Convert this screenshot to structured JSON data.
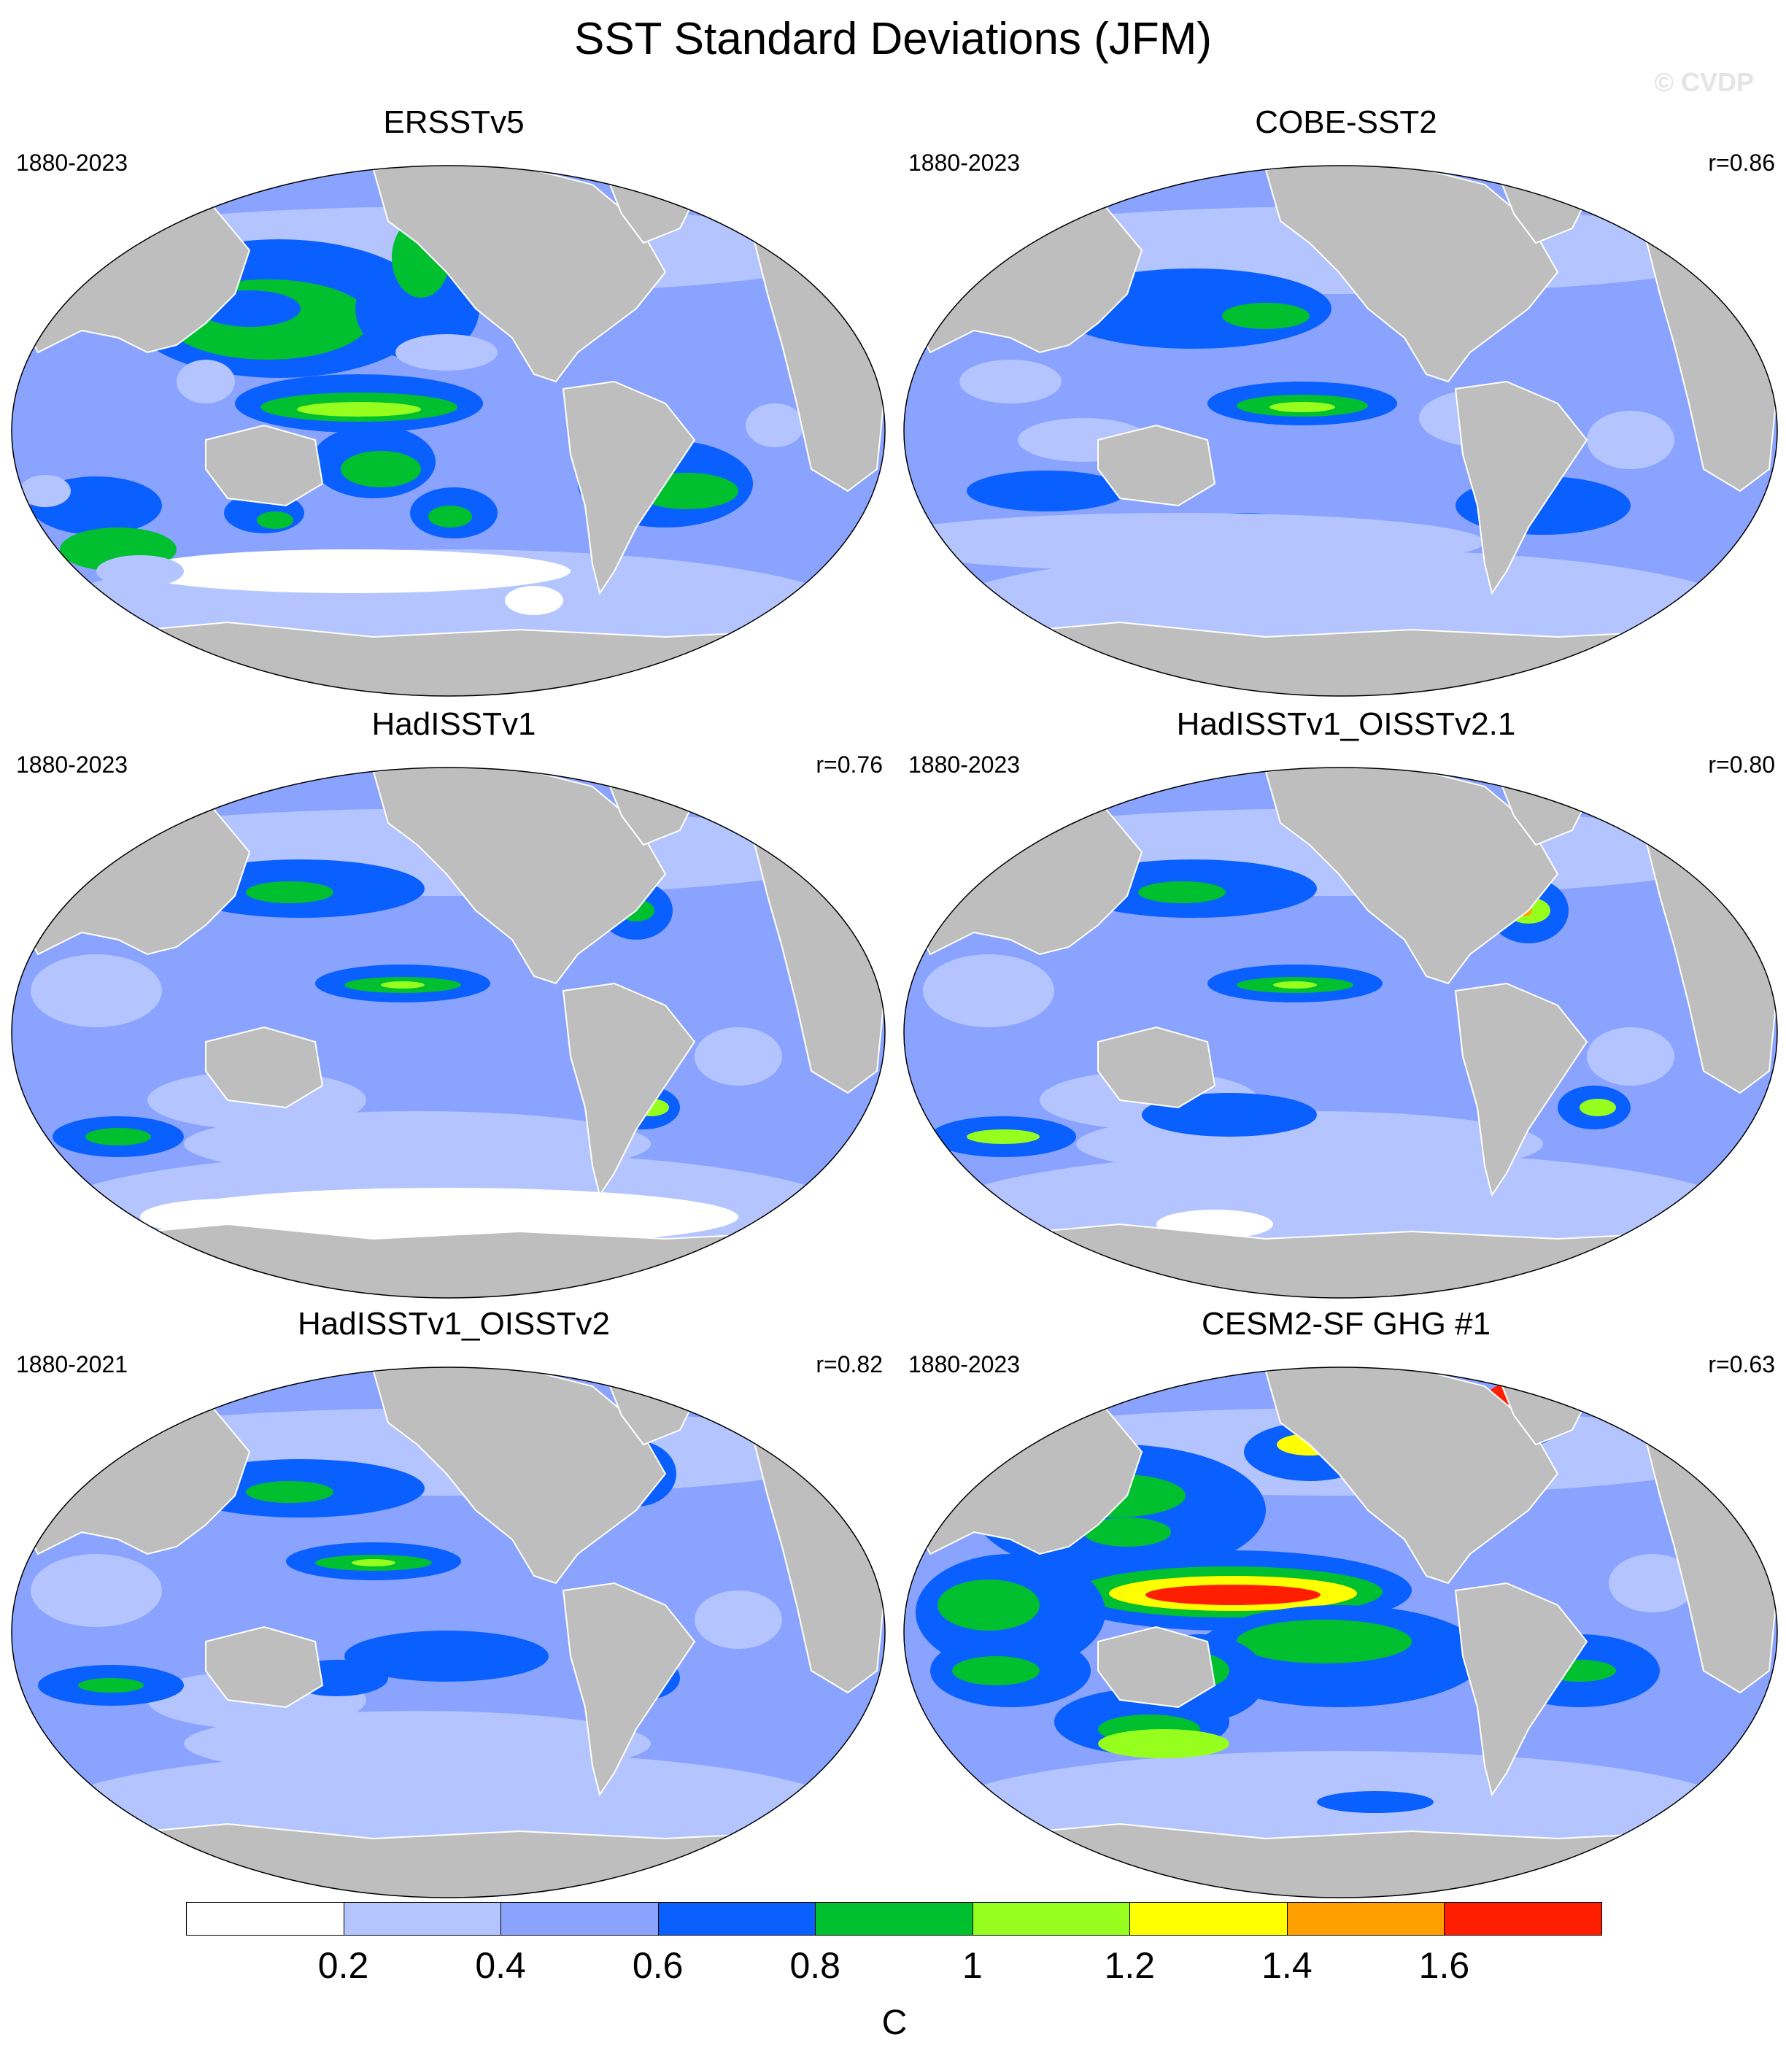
{
  "title": "SST Standard Deviations (JFM)",
  "watermark": "© CVDP",
  "colors": {
    "land": "#bebebe",
    "ocean_base": "#8aa3ff",
    "levels": [
      "#ffffff",
      "#b4c4ff",
      "#8aa3ff",
      "#0a5fff",
      "#00c030",
      "#96ff1e",
      "#ffff00",
      "#ffa000",
      "#ff1e00"
    ]
  },
  "panels": [
    {
      "title": "ERSSTv5",
      "years": "1880-2023",
      "r": "",
      "variant": "ersst"
    },
    {
      "title": "COBE-SST2",
      "years": "1880-2023",
      "r": "r=0.86",
      "variant": "cobe"
    },
    {
      "title": "HadISSTv1",
      "years": "1880-2023",
      "r": "r=0.76",
      "variant": "had"
    },
    {
      "title": "HadISSTv1_OISSTv2.1",
      "years": "1880-2023",
      "r": "r=0.80",
      "variant": "had21"
    },
    {
      "title": "HadISSTv1_OISSTv2",
      "years": "1880-2021",
      "r": "r=0.82",
      "variant": "had2"
    },
    {
      "title": "CESM2-SF GHG #1",
      "years": "1880-2023",
      "r": "r=0.63",
      "variant": "cesm"
    }
  ],
  "colorbar": {
    "labels": [
      "0.2",
      "0.4",
      "0.6",
      "0.8",
      "1",
      "1.2",
      "1.4",
      "1.6"
    ],
    "unit": "C"
  }
}
